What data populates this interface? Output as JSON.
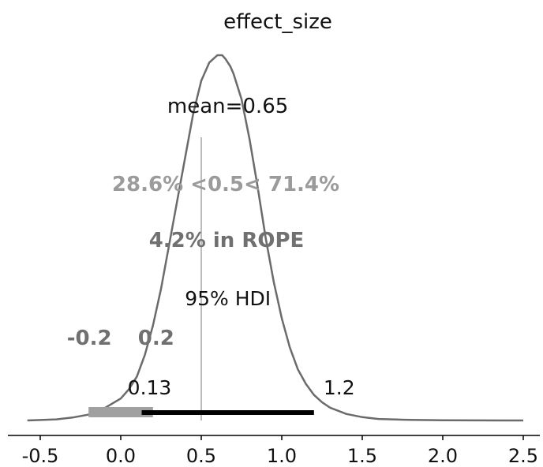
{
  "chart_data": {
    "type": "area",
    "title": "effect_size",
    "xlabel": "",
    "ylabel": "",
    "xlim": [
      -0.72,
      2.62
    ],
    "xticks": [
      "-0.5",
      "0.0",
      "0.5",
      "1.0",
      "1.5",
      "2.0",
      "2.5"
    ],
    "xtick_values": [
      -0.5,
      0.0,
      0.5,
      1.0,
      1.5,
      2.0,
      2.5
    ],
    "grid": false,
    "density": {
      "x": [
        -0.58,
        -0.4,
        -0.3,
        -0.2,
        -0.1,
        0.0,
        0.05,
        0.1,
        0.15,
        0.2,
        0.25,
        0.3,
        0.35,
        0.4,
        0.45,
        0.5,
        0.55,
        0.6,
        0.63,
        0.65,
        0.68,
        0.7,
        0.75,
        0.8,
        0.85,
        0.9,
        0.95,
        1.0,
        1.05,
        1.1,
        1.15,
        1.2,
        1.25,
        1.3,
        1.4,
        1.5,
        1.6,
        1.8,
        2.0,
        2.2,
        2.5
      ],
      "y": [
        0.0,
        0.003,
        0.008,
        0.016,
        0.034,
        0.06,
        0.085,
        0.12,
        0.18,
        0.26,
        0.36,
        0.48,
        0.6,
        0.72,
        0.84,
        0.93,
        0.98,
        1.0,
        1.0,
        0.99,
        0.97,
        0.95,
        0.88,
        0.77,
        0.64,
        0.5,
        0.38,
        0.28,
        0.2,
        0.14,
        0.1,
        0.07,
        0.05,
        0.035,
        0.018,
        0.009,
        0.004,
        0.0015,
        0.0005,
        0.0002,
        0.0
      ]
    },
    "point_estimate": {
      "label": "mean=0.65",
      "value": 0.65
    },
    "reference": {
      "value": 0.5,
      "label": "28.6% <0.5< 71.4%"
    },
    "rope": {
      "low": -0.2,
      "high": 0.2,
      "label": "4.2% in ROPE",
      "low_label": "-0.2",
      "high_label": "0.2"
    },
    "hdi": {
      "low": 0.13,
      "high": 1.2,
      "label": "95% HDI",
      "low_label": "0.13",
      "high_label": "1.2"
    },
    "colors": {
      "curve": "#6b6b6b",
      "reference": "#bdbdbd",
      "reference_text": "#9b9b9b",
      "rope": "#a0a0a0",
      "rope_text": "#707070",
      "hdi": "#000000",
      "text": "#111111",
      "axis": "#000000"
    }
  }
}
